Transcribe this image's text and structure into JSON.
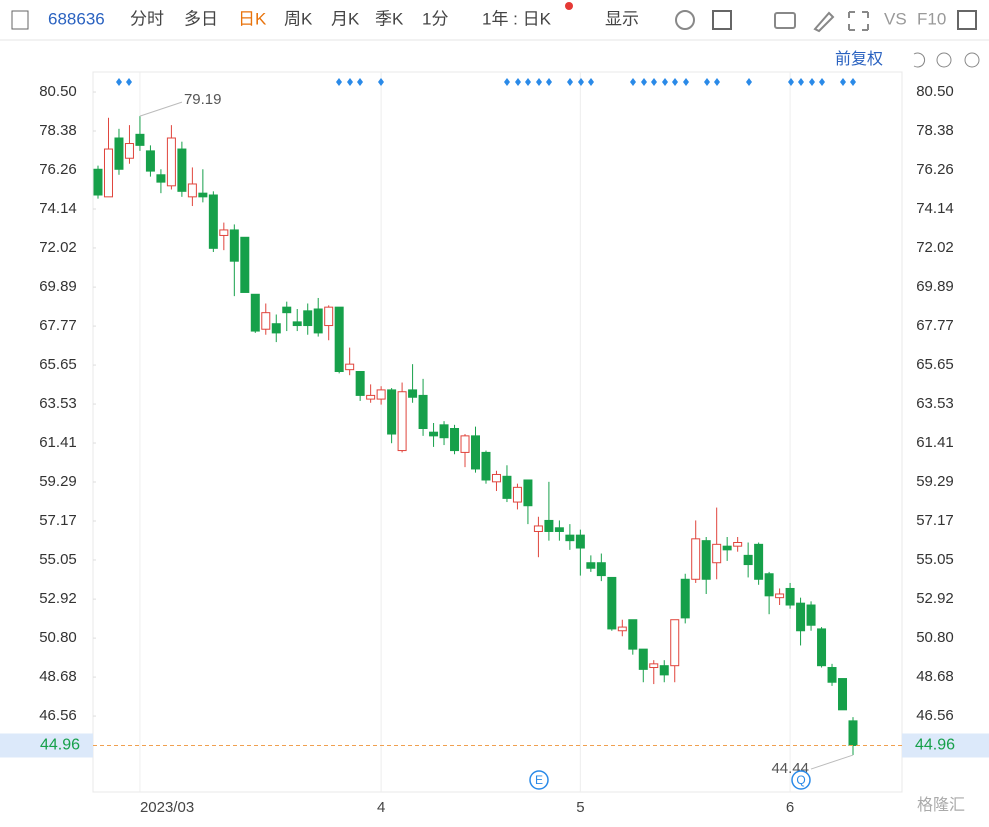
{
  "toolbar": {
    "code": "688636",
    "tabs": [
      "分时",
      "多日",
      "日K",
      "周K",
      "月K",
      "季K",
      "1分"
    ],
    "period": "1年 : 日K",
    "display": "显示",
    "vs": "VS",
    "f10": "F10"
  },
  "adjust": "前复权",
  "events": [
    "E",
    "Q"
  ],
  "watermark": "格隆汇",
  "chart_data": {
    "type": "candlestick",
    "categories": [
      null,
      null,
      null,
      null,
      "2023/03",
      null,
      null,
      null,
      null,
      null,
      null,
      null,
      null,
      null,
      null,
      null,
      null,
      null,
      null,
      null,
      null,
      null,
      null,
      null,
      null,
      null,
      null,
      "4",
      null,
      null,
      null,
      null,
      null,
      null,
      null,
      null,
      null,
      null,
      null,
      null,
      null,
      null,
      null,
      null,
      null,
      null,
      "5",
      null,
      null,
      null,
      null,
      null,
      null,
      null,
      null,
      null,
      null,
      null,
      null,
      null,
      null,
      null,
      null,
      null,
      null,
      null,
      "6",
      null,
      null,
      null,
      null,
      null,
      null
    ],
    "open": [
      76.3,
      74.8,
      78.0,
      76.9,
      78.2,
      77.3,
      76.0,
      75.4,
      77.4,
      74.8,
      75.0,
      74.9,
      72.7,
      73.0,
      72.6,
      69.5,
      67.6,
      67.9,
      68.8,
      68.0,
      68.6,
      68.7,
      67.8,
      68.8,
      65.4,
      65.3,
      63.8,
      63.8,
      64.3,
      61.0,
      64.3,
      64.0,
      62.0,
      62.4,
      62.2,
      60.9,
      61.8,
      60.9,
      59.3,
      59.6,
      58.2,
      59.4,
      56.6,
      57.2,
      56.8,
      56.4,
      56.4,
      54.9,
      54.9,
      54.1,
      51.2,
      51.8,
      50.2,
      49.2,
      49.3,
      49.3,
      54.0,
      54.0,
      56.1,
      54.9,
      55.8,
      55.8,
      55.3,
      55.9,
      54.3,
      53.0,
      53.5,
      52.7,
      52.6,
      51.3,
      49.2,
      48.6,
      46.3
    ],
    "high": [
      76.5,
      79.1,
      78.5,
      78.7,
      79.19,
      77.6,
      76.3,
      78.7,
      77.8,
      76.4,
      76.3,
      75.1,
      73.4,
      73.3,
      72.6,
      69.5,
      69.0,
      68.4,
      69.1,
      68.7,
      69.0,
      69.3,
      68.9,
      68.8,
      66.6,
      65.3,
      64.6,
      64.5,
      64.4,
      64.7,
      65.7,
      64.9,
      62.5,
      62.6,
      62.4,
      61.9,
      62.3,
      61.0,
      59.9,
      60.2,
      59.2,
      59.4,
      57.4,
      59.3,
      57.2,
      57.0,
      56.7,
      55.3,
      55.4,
      54.1,
      51.8,
      51.8,
      50.2,
      49.6,
      49.6,
      51.8,
      54.3,
      57.2,
      56.3,
      57.9,
      56.3,
      56.3,
      56.0,
      56.0,
      54.4,
      53.5,
      53.8,
      53.0,
      52.8,
      51.4,
      49.4,
      48.6,
      46.5
    ],
    "low": [
      74.7,
      74.8,
      76.0,
      76.6,
      77.3,
      75.9,
      75.0,
      75.2,
      74.8,
      74.3,
      74.5,
      71.8,
      71.9,
      69.4,
      69.6,
      67.4,
      67.3,
      66.9,
      67.5,
      67.5,
      67.3,
      67.2,
      67.0,
      65.2,
      65.1,
      63.7,
      63.6,
      63.5,
      61.4,
      60.9,
      63.6,
      61.8,
      61.2,
      61.3,
      60.8,
      60.1,
      59.8,
      59.2,
      58.8,
      58.2,
      57.8,
      57.0,
      55.2,
      56.1,
      56.1,
      55.6,
      54.2,
      54.4,
      53.9,
      51.2,
      50.9,
      49.9,
      48.4,
      48.3,
      48.4,
      48.4,
      51.6,
      53.8,
      53.2,
      54.0,
      55.0,
      55.5,
      54.1,
      53.7,
      52.1,
      52.6,
      52.4,
      50.4,
      51.2,
      49.2,
      48.2,
      46.9,
      44.44
    ],
    "close": [
      74.9,
      77.4,
      76.3,
      77.7,
      77.6,
      76.2,
      75.6,
      78.0,
      75.1,
      75.5,
      74.8,
      72.0,
      73.0,
      71.3,
      69.6,
      67.5,
      68.5,
      67.4,
      68.5,
      67.8,
      67.8,
      67.4,
      68.8,
      65.3,
      65.7,
      64.0,
      64.0,
      64.3,
      61.9,
      64.2,
      63.9,
      62.2,
      61.8,
      61.7,
      61.0,
      61.8,
      60.0,
      59.4,
      59.7,
      58.4,
      59.0,
      58.0,
      56.9,
      56.6,
      56.6,
      56.1,
      55.7,
      54.6,
      54.2,
      51.3,
      51.4,
      50.2,
      49.1,
      49.4,
      48.8,
      51.8,
      51.9,
      56.2,
      54.0,
      55.9,
      55.6,
      56.0,
      54.8,
      54.0,
      53.1,
      53.2,
      52.6,
      51.2,
      51.5,
      49.3,
      48.4,
      46.9,
      44.96
    ],
    "up_color": "#e0443c",
    "down_color": "#16a04a",
    "ylim": [
      42.43,
      81.59
    ],
    "yticks": [
      {
        "value": 80.5,
        "label": "80.50"
      },
      78.38,
      76.26,
      74.14,
      72.02,
      69.89,
      67.77,
      65.65,
      63.53,
      61.41,
      59.29,
      57.17,
      55.05,
      52.92,
      {
        "value": 50.8,
        "label": "50.80"
      },
      48.68,
      46.56
    ],
    "grid": false
  }
}
